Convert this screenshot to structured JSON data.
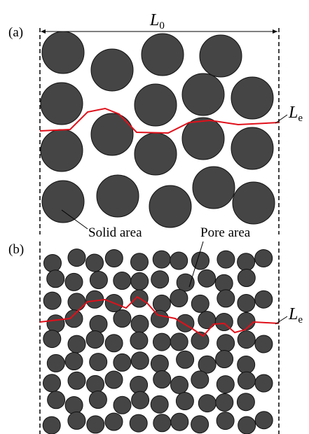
{
  "panel_a": {
    "label": "(a)",
    "length_label": {
      "symbol": "L",
      "subscript": "0"
    },
    "path_label": {
      "symbol": "L",
      "subscript": "e"
    },
    "annotation": "Solid area"
  },
  "panel_b": {
    "label": "(b)",
    "path_label": {
      "symbol": "L",
      "subscript": "e"
    },
    "annotation": "Pore area"
  }
}
